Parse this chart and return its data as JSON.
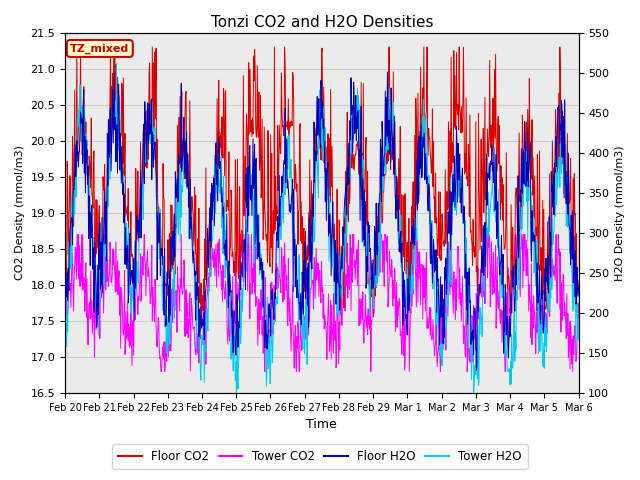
{
  "title": "Tonzi CO2 and H2O Densities",
  "xlabel": "Time",
  "ylabel_left": "CO2 Density (mmol/m3)",
  "ylabel_right": "H2O Density (mmol/m3)",
  "ylim_left": [
    16.5,
    21.5
  ],
  "ylim_right": [
    100,
    550
  ],
  "annotation_text": "TZ_mixed",
  "annotation_color": "#cc0000",
  "annotation_bg": "#ffffcc",
  "floor_co2_color": "#dd0000",
  "tower_co2_color": "#ff00ff",
  "floor_h2o_color": "#0000bb",
  "tower_h2o_color": "#00ccee",
  "n_points": 960,
  "x_tick_labels": [
    "Feb 20",
    "Feb 21",
    "Feb 22",
    "Feb 23",
    "Feb 24",
    "Feb 25",
    "Feb 26",
    "Feb 27",
    "Feb 28",
    "Feb 29",
    "Mar 1",
    "Mar 2",
    "Mar 3",
    "Mar 4",
    "Mar 5",
    "Mar 6"
  ],
  "grid_color": "#bbbbbb",
  "bg_color": "#ebebeb",
  "figsize": [
    6.4,
    4.8
  ],
  "dpi": 100
}
